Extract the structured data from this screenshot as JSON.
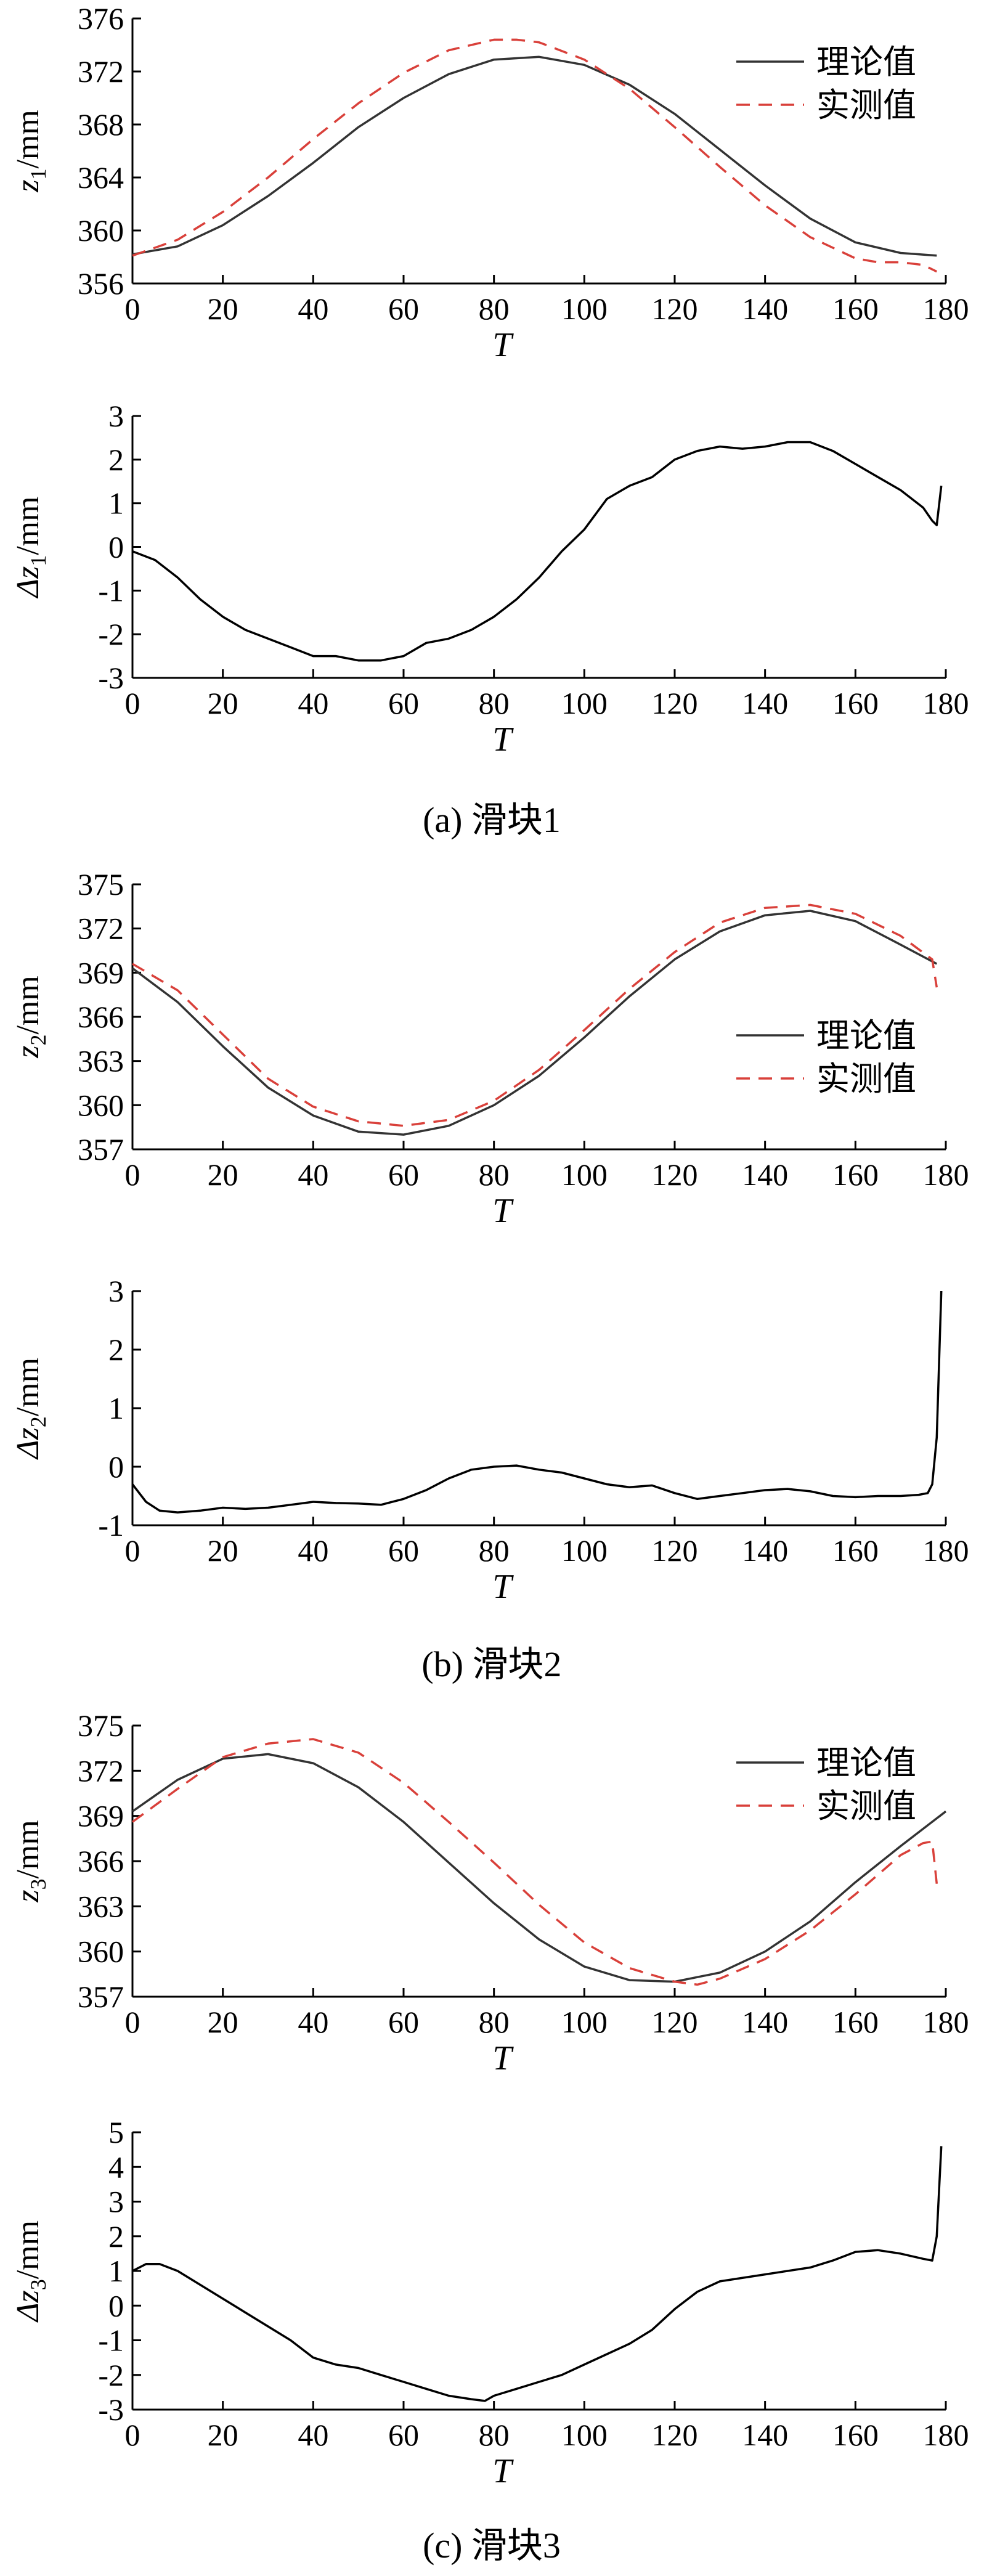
{
  "captions": [
    "(a)  滑块1",
    "(b)  滑块2",
    "(c)  滑块3"
  ],
  "colors": {
    "theory": "#333333",
    "measured": "#d9403a",
    "error": "#000000"
  },
  "chart_data": [
    {
      "type": "line",
      "ylabel": {
        "var": "z",
        "sub": "1",
        "unit": "/mm"
      },
      "xlabel": "T",
      "xlim": [
        0,
        180
      ],
      "xticks": [
        0,
        20,
        40,
        60,
        80,
        100,
        120,
        140,
        160,
        180
      ],
      "ylim": [
        356,
        376
      ],
      "yticks": [
        356,
        360,
        364,
        368,
        372,
        376
      ],
      "legend": {
        "position": "top-right",
        "entries": [
          "理论值",
          "实测值"
        ]
      },
      "series": [
        {
          "name": "理论值",
          "style": "solid",
          "x": [
            0,
            10,
            20,
            30,
            40,
            50,
            60,
            70,
            80,
            90,
            100,
            110,
            120,
            130,
            140,
            150,
            160,
            170,
            178
          ],
          "y": [
            358.2,
            358.8,
            360.4,
            362.6,
            365.1,
            367.8,
            370.0,
            371.8,
            372.9,
            373.1,
            372.5,
            371.0,
            368.8,
            366.1,
            363.4,
            360.9,
            359.1,
            358.3,
            358.1
          ]
        },
        {
          "name": "实测值",
          "style": "dashed",
          "x": [
            0,
            10,
            20,
            30,
            40,
            50,
            60,
            70,
            80,
            85,
            90,
            100,
            110,
            120,
            130,
            140,
            150,
            160,
            165,
            170,
            175,
            178
          ],
          "y": [
            358.1,
            359.3,
            361.4,
            364.0,
            366.9,
            369.6,
            371.9,
            373.6,
            374.4,
            374.4,
            374.2,
            372.9,
            370.7,
            367.8,
            364.8,
            361.9,
            359.5,
            357.9,
            357.6,
            357.6,
            357.4,
            356.9
          ]
        }
      ]
    },
    {
      "type": "line",
      "ylabel": {
        "var": "Δz",
        "sub": "1",
        "unit": "/mm"
      },
      "xlabel": "T",
      "xlim": [
        0,
        180
      ],
      "xticks": [
        0,
        20,
        40,
        60,
        80,
        100,
        120,
        140,
        160,
        180
      ],
      "ylim": [
        -3,
        3
      ],
      "yticks": [
        -3,
        -2,
        -1,
        0,
        1,
        2,
        3
      ],
      "series": [
        {
          "name": "",
          "style": "solid",
          "x": [
            0,
            5,
            10,
            15,
            20,
            25,
            30,
            35,
            40,
            45,
            50,
            55,
            60,
            65,
            70,
            75,
            80,
            85,
            90,
            95,
            100,
            105,
            110,
            115,
            120,
            125,
            130,
            135,
            140,
            145,
            150,
            155,
            160,
            165,
            170,
            175,
            177,
            178,
            179
          ],
          "y": [
            -0.1,
            -0.3,
            -0.7,
            -1.2,
            -1.6,
            -1.9,
            -2.1,
            -2.3,
            -2.5,
            -2.5,
            -2.6,
            -2.6,
            -2.5,
            -2.2,
            -2.1,
            -1.9,
            -1.6,
            -1.2,
            -0.7,
            -0.1,
            0.4,
            1.1,
            1.4,
            1.6,
            2.0,
            2.2,
            2.3,
            2.25,
            2.3,
            2.4,
            2.4,
            2.2,
            1.9,
            1.6,
            1.3,
            0.9,
            0.6,
            0.5,
            1.4
          ]
        }
      ]
    },
    {
      "type": "line",
      "ylabel": {
        "var": "z",
        "sub": "2",
        "unit": "/mm"
      },
      "xlabel": "T",
      "xlim": [
        0,
        180
      ],
      "xticks": [
        0,
        20,
        40,
        60,
        80,
        100,
        120,
        140,
        160,
        180
      ],
      "ylim": [
        357,
        375
      ],
      "yticks": [
        357,
        360,
        363,
        366,
        369,
        372,
        375
      ],
      "legend": {
        "position": "center-right",
        "entries": [
          "理论值",
          "实测值"
        ]
      },
      "series": [
        {
          "name": "理论值",
          "style": "solid",
          "x": [
            0,
            10,
            20,
            30,
            40,
            50,
            60,
            70,
            80,
            90,
            100,
            110,
            120,
            130,
            140,
            150,
            160,
            170,
            178
          ],
          "y": [
            369.3,
            367.0,
            364.0,
            361.2,
            359.3,
            358.2,
            358.0,
            358.6,
            360.0,
            362.0,
            364.6,
            367.4,
            369.9,
            371.8,
            372.9,
            373.2,
            372.5,
            370.9,
            369.6
          ]
        },
        {
          "name": "实测值",
          "style": "dashed",
          "x": [
            0,
            10,
            20,
            30,
            40,
            50,
            60,
            70,
            80,
            90,
            100,
            110,
            120,
            130,
            140,
            150,
            160,
            170,
            177,
            178
          ],
          "y": [
            369.6,
            367.8,
            364.8,
            361.8,
            359.9,
            358.9,
            358.6,
            359.0,
            360.3,
            362.4,
            365.1,
            367.9,
            370.4,
            372.4,
            373.4,
            373.6,
            373.0,
            371.5,
            369.9,
            368.0
          ]
        }
      ]
    },
    {
      "type": "line",
      "ylabel": {
        "var": "Δz",
        "sub": "2",
        "unit": "/mm"
      },
      "xlabel": "T",
      "xlim": [
        0,
        180
      ],
      "xticks": [
        0,
        20,
        40,
        60,
        80,
        100,
        120,
        140,
        160,
        180
      ],
      "ylim": [
        -1,
        3
      ],
      "yticks": [
        -1,
        0,
        1,
        2,
        3
      ],
      "series": [
        {
          "name": "",
          "style": "solid",
          "x": [
            0,
            3,
            6,
            10,
            15,
            20,
            25,
            30,
            35,
            40,
            45,
            50,
            55,
            60,
            65,
            70,
            75,
            80,
            85,
            90,
            95,
            100,
            105,
            110,
            115,
            120,
            125,
            130,
            135,
            140,
            145,
            150,
            155,
            160,
            165,
            170,
            174,
            176,
            177,
            178,
            179
          ],
          "y": [
            -0.3,
            -0.6,
            -0.75,
            -0.78,
            -0.75,
            -0.7,
            -0.72,
            -0.7,
            -0.65,
            -0.6,
            -0.62,
            -0.63,
            -0.65,
            -0.55,
            -0.4,
            -0.2,
            -0.05,
            0.0,
            0.02,
            -0.05,
            -0.1,
            -0.2,
            -0.3,
            -0.35,
            -0.32,
            -0.45,
            -0.55,
            -0.5,
            -0.45,
            -0.4,
            -0.38,
            -0.42,
            -0.5,
            -0.52,
            -0.5,
            -0.5,
            -0.48,
            -0.45,
            -0.3,
            0.5,
            3.0
          ]
        }
      ]
    },
    {
      "type": "line",
      "ylabel": {
        "var": "z",
        "sub": "3",
        "unit": "/mm"
      },
      "xlabel": "T",
      "xlim": [
        0,
        180
      ],
      "xticks": [
        0,
        20,
        40,
        60,
        80,
        100,
        120,
        140,
        160,
        180
      ],
      "ylim": [
        357,
        375
      ],
      "yticks": [
        357,
        360,
        363,
        366,
        369,
        372,
        375
      ],
      "legend": {
        "position": "top-right",
        "entries": [
          "理论值",
          "实测值"
        ]
      },
      "series": [
        {
          "name": "理论值",
          "style": "solid",
          "x": [
            0,
            10,
            20,
            30,
            40,
            50,
            60,
            70,
            80,
            90,
            100,
            110,
            120,
            130,
            140,
            150,
            160,
            170,
            180
          ],
          "y": [
            369.3,
            371.4,
            372.8,
            373.1,
            372.5,
            370.9,
            368.6,
            365.9,
            363.2,
            360.8,
            359.0,
            358.1,
            358.0,
            358.6,
            360.0,
            362.0,
            364.6,
            367.0,
            369.3
          ]
        },
        {
          "name": "实测值",
          "style": "dashed",
          "x": [
            0,
            10,
            20,
            30,
            40,
            50,
            60,
            70,
            80,
            90,
            100,
            110,
            120,
            125,
            130,
            140,
            150,
            160,
            170,
            175,
            177,
            178
          ],
          "y": [
            368.6,
            370.8,
            372.9,
            373.8,
            374.1,
            373.2,
            371.2,
            368.6,
            365.9,
            363.1,
            360.6,
            358.9,
            358.0,
            357.8,
            358.2,
            359.5,
            361.4,
            363.8,
            366.4,
            367.2,
            367.3,
            364.5
          ]
        }
      ]
    },
    {
      "type": "line",
      "ylabel": {
        "var": "Δz",
        "sub": "3",
        "unit": "/mm"
      },
      "xlabel": "T",
      "xlim": [
        0,
        180
      ],
      "xticks": [
        0,
        20,
        40,
        60,
        80,
        100,
        120,
        140,
        160,
        180
      ],
      "ylim": [
        -3,
        5
      ],
      "yticks": [
        -3,
        -2,
        -1,
        0,
        1,
        2,
        3,
        4,
        5
      ],
      "series": [
        {
          "name": "",
          "style": "solid",
          "x": [
            0,
            3,
            6,
            10,
            15,
            20,
            25,
            30,
            35,
            40,
            45,
            50,
            55,
            60,
            65,
            70,
            75,
            78,
            80,
            85,
            90,
            95,
            100,
            105,
            110,
            115,
            120,
            125,
            130,
            140,
            150,
            155,
            160,
            165,
            170,
            175,
            177,
            178,
            179
          ],
          "y": [
            1.0,
            1.2,
            1.2,
            1.0,
            0.6,
            0.2,
            -0.2,
            -0.6,
            -1.0,
            -1.5,
            -1.7,
            -1.8,
            -2.0,
            -2.2,
            -2.4,
            -2.6,
            -2.7,
            -2.75,
            -2.6,
            -2.4,
            -2.2,
            -2.0,
            -1.7,
            -1.4,
            -1.1,
            -0.7,
            -0.1,
            0.4,
            0.7,
            0.9,
            1.1,
            1.3,
            1.55,
            1.6,
            1.5,
            1.35,
            1.3,
            2.0,
            4.6
          ]
        }
      ]
    }
  ]
}
